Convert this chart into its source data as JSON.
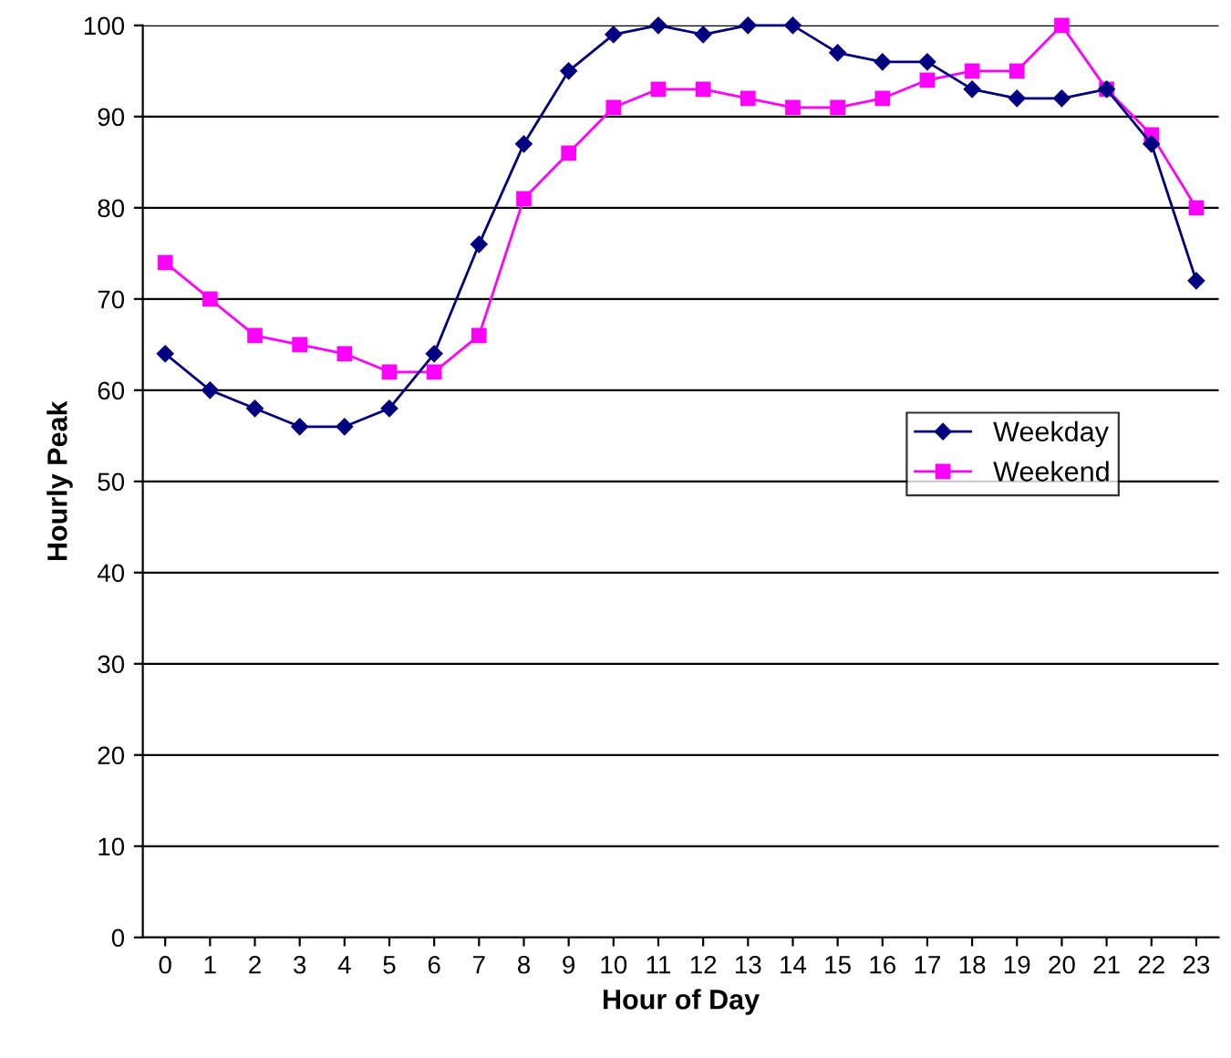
{
  "chart_data": {
    "type": "line",
    "xlabel": "Hour of Day",
    "ylabel": "Hourly Peak",
    "categories": [
      "0",
      "1",
      "2",
      "3",
      "4",
      "5",
      "6",
      "7",
      "8",
      "9",
      "10",
      "11",
      "12",
      "13",
      "14",
      "15",
      "16",
      "17",
      "18",
      "19",
      "20",
      "21",
      "22",
      "23"
    ],
    "series": [
      {
        "name": "Weekday",
        "color": "#000080",
        "marker": "diamond",
        "values": [
          64,
          60,
          58,
          56,
          56,
          58,
          64,
          76,
          87,
          95,
          99,
          100,
          99,
          100,
          100,
          97,
          96,
          96,
          93,
          92,
          92,
          93,
          87,
          72
        ]
      },
      {
        "name": "Weekend",
        "color": "#ff00ff",
        "marker": "square",
        "values": [
          74,
          70,
          66,
          65,
          64,
          62,
          62,
          66,
          81,
          86,
          91,
          93,
          93,
          92,
          91,
          91,
          92,
          94,
          95,
          95,
          100,
          93,
          88,
          80
        ]
      }
    ],
    "ylim": [
      0,
      100
    ],
    "yticks": [
      0,
      10,
      20,
      30,
      40,
      50,
      60,
      70,
      80,
      90,
      100
    ],
    "grid": "y",
    "legend": "right",
    "line_style": "solid"
  }
}
